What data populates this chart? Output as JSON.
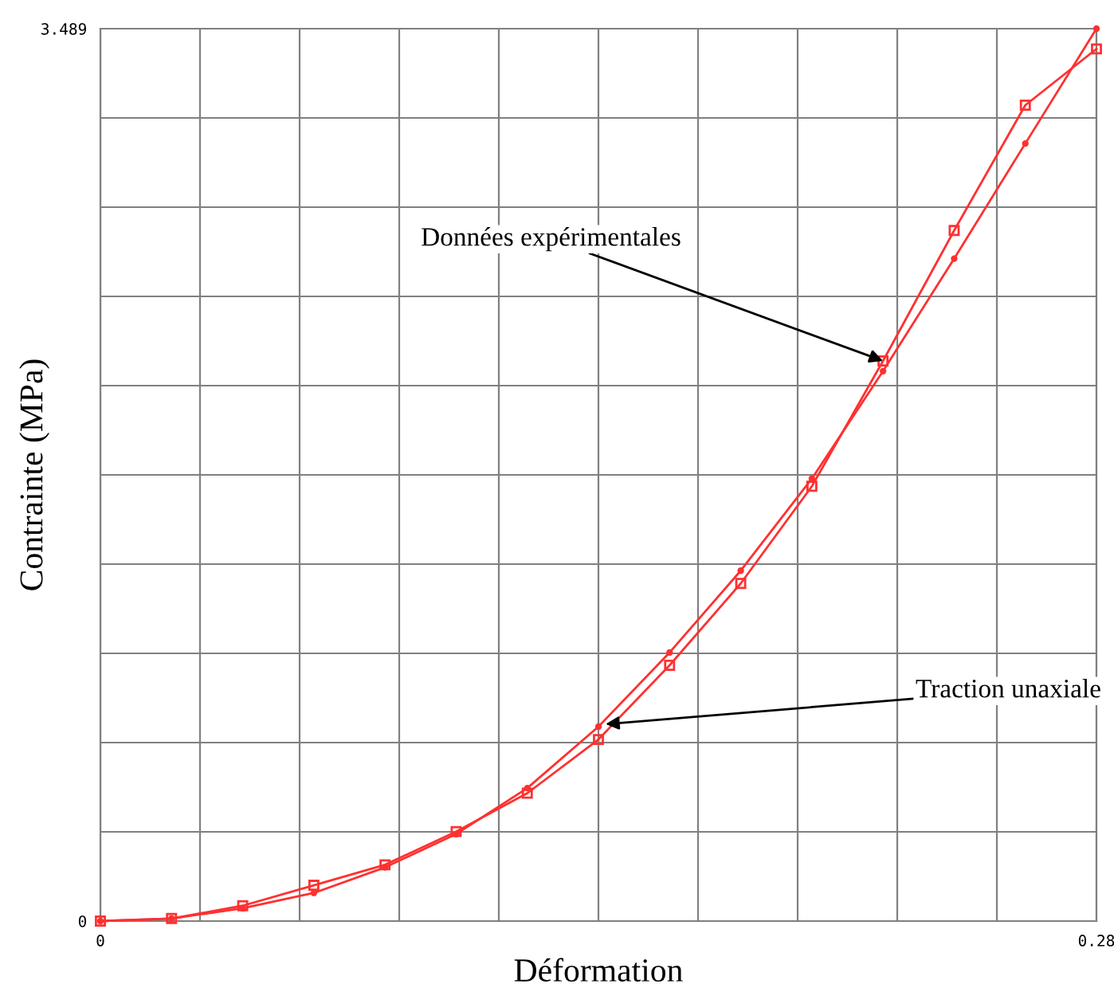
{
  "chart_data": {
    "type": "line",
    "xlabel": "Déformation",
    "ylabel": "Contrainte (MPa)",
    "x": [
      0,
      0.02,
      0.04,
      0.06,
      0.08,
      0.1,
      0.12,
      0.14,
      0.16,
      0.18,
      0.2,
      0.22,
      0.24,
      0.26,
      0.28
    ],
    "series": [
      {
        "color": "#ff3030",
        "marker": "square",
        "values": [
          0,
          0.01,
          0.06,
          0.14,
          0.22,
          0.35,
          0.5,
          0.71,
          1.0,
          1.32,
          1.7,
          2.19,
          2.7,
          3.19,
          3.41
        ]
      },
      {
        "color": "#ff3030",
        "marker": "circle",
        "values": [
          0,
          0.01,
          0.05,
          0.11,
          0.21,
          0.34,
          0.52,
          0.76,
          1.05,
          1.37,
          1.73,
          2.15,
          2.59,
          3.04,
          3.489
        ]
      }
    ],
    "annotations": [
      {
        "text": "Données expérimentales",
        "x": 0.22,
        "y": 2.19
      },
      {
        "text": "Traction unaxiale",
        "x": 0.142,
        "y": 0.77
      }
    ],
    "xlim": [
      0,
      0.28
    ],
    "ylim": [
      0,
      3.489
    ],
    "xticks": [
      0,
      {
        "value": 0.028,
        "label": null
      },
      {
        "value": 0.056,
        "label": null
      },
      {
        "value": 0.084,
        "label": null
      },
      {
        "value": 0.112,
        "label": null
      },
      {
        "value": 0.14,
        "label": null
      },
      {
        "value": 0.168,
        "label": null
      },
      {
        "value": 0.196,
        "label": null
      },
      {
        "value": 0.224,
        "label": null
      },
      {
        "value": 0.252,
        "label": null
      },
      0.28
    ],
    "yticks": [
      0,
      {
        "value": 0.3489,
        "label": null
      },
      {
        "value": 0.6978,
        "label": null
      },
      {
        "value": 1.0467,
        "label": null
      },
      {
        "value": 1.3956,
        "label": null
      },
      {
        "value": 1.7445,
        "label": null
      },
      {
        "value": 2.0934,
        "label": null
      },
      {
        "value": 2.4423,
        "label": null
      },
      {
        "value": 2.7912,
        "label": null
      },
      {
        "value": 3.1401,
        "label": null
      },
      3.489
    ],
    "grid": true
  }
}
